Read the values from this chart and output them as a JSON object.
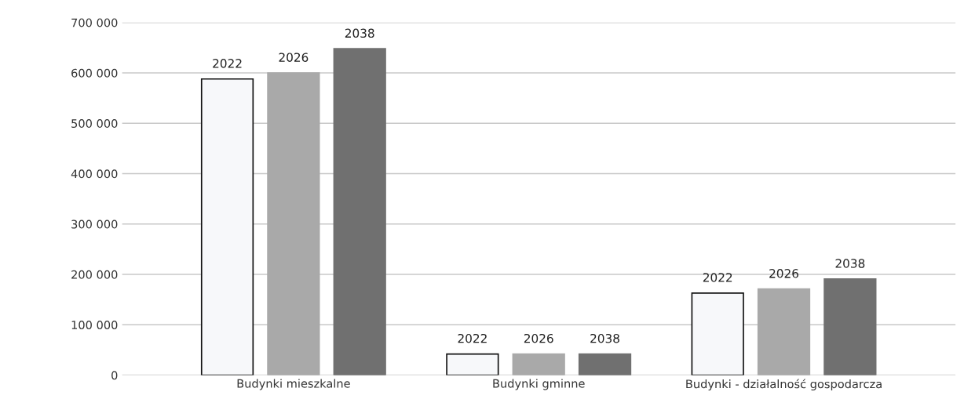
{
  "chart_data": {
    "type": "bar",
    "categories": [
      "Budynki mieszkalne",
      "Budynki gminne",
      "Budynki - działalność gospodarcza"
    ],
    "series": [
      {
        "name": "2022",
        "color": "#f7f8fa",
        "values": [
          588000,
          42000,
          163000
        ]
      },
      {
        "name": "2026",
        "color": "#a9a9a9",
        "values": [
          600000,
          42000,
          171000
        ]
      },
      {
        "name": "2038",
        "color": "#707070",
        "values": [
          648000,
          42000,
          191000
        ]
      }
    ],
    "ylim": [
      0,
      700000
    ],
    "yticks": [
      {
        "value": 0,
        "label": "0"
      },
      {
        "value": 100000,
        "label": "100 000"
      },
      {
        "value": 200000,
        "label": "200 000"
      },
      {
        "value": 300000,
        "label": "300 000"
      },
      {
        "value": 400000,
        "label": "400 000"
      },
      {
        "value": 500000,
        "label": "500 000"
      },
      {
        "value": 600000,
        "label": "600 000"
      },
      {
        "value": 700000,
        "label": "700 000"
      }
    ],
    "grid": "y",
    "legend": false
  }
}
